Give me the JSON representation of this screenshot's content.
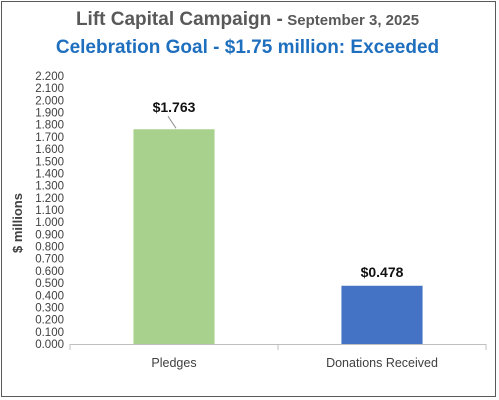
{
  "chart_data": {
    "type": "bar",
    "title": "Lift Capital Campaign -",
    "title_date": "September 3, 2025",
    "subtitle": "Celebration Goal - $1.75 million: Exceeded",
    "xlabel": "",
    "ylabel": "$ millions",
    "categories": [
      "Pledges",
      "Donations Received"
    ],
    "values": [
      1.763,
      0.478
    ],
    "data_labels": [
      "$1.763",
      "$0.478"
    ],
    "bar_colors": [
      "#a9d18e",
      "#4472c4"
    ],
    "ylim": [
      0,
      2.2
    ],
    "y_tick_step": 0.1,
    "y_tick_labels": [
      "0.000",
      "0.100",
      "0.200",
      "0.300",
      "0.400",
      "0.500",
      "0.600",
      "0.700",
      "0.800",
      "0.900",
      "1.000",
      "1.100",
      "1.200",
      "1.300",
      "1.400",
      "1.500",
      "1.600",
      "1.700",
      "1.800",
      "1.900",
      "2.000",
      "2.100",
      "2.200"
    ],
    "grid": false,
    "legend": "none"
  }
}
